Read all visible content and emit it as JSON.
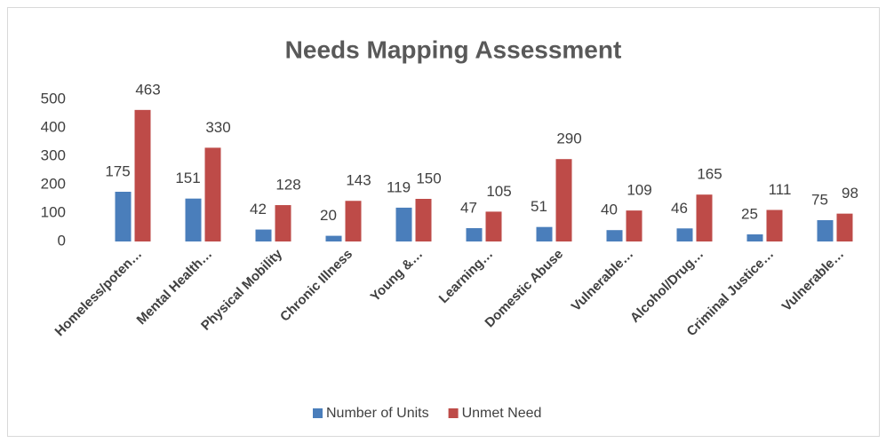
{
  "chart_data": {
    "type": "bar",
    "title": "Needs Mapping Assessment",
    "categories": [
      "Homeless/poten…",
      "Mental Health…",
      "Physical Mobility",
      "Chronic Illness",
      "Young &…",
      "Learning…",
      "Domestic Abuse",
      "Vulnerable…",
      "Alcohol/Drug…",
      "Criminal Justice…",
      "Vulnerable…"
    ],
    "series": [
      {
        "name": "Number of Units",
        "color": "#4a7ebb",
        "values": [
          175,
          151,
          42,
          20,
          119,
          47,
          51,
          40,
          46,
          25,
          75
        ]
      },
      {
        "name": "Unmet Need",
        "color": "#be4b48",
        "values": [
          463,
          330,
          128,
          143,
          150,
          105,
          290,
          109,
          165,
          111,
          98
        ]
      }
    ],
    "ylim": [
      0,
      500
    ],
    "yticks": [
      0,
      100,
      200,
      300,
      400,
      500
    ],
    "grid": false,
    "legend": "bottom"
  }
}
